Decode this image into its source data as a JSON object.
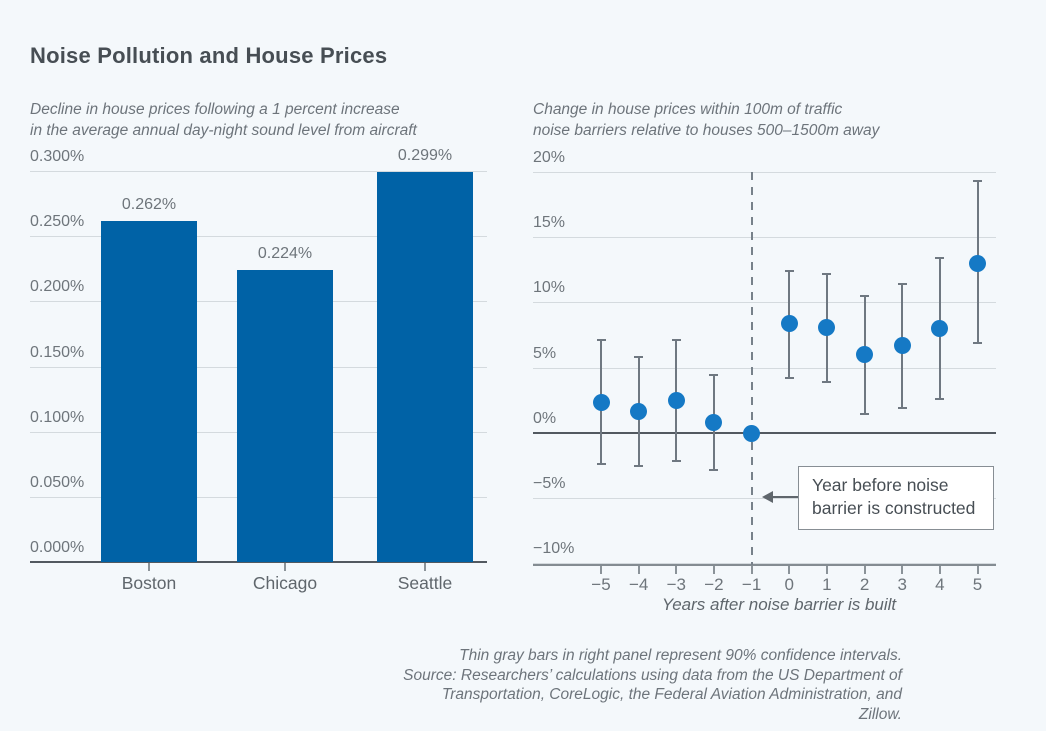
{
  "page": {
    "title": "Noise Pollution and House Prices",
    "caption_lines": [
      "Thin gray bars in right panel represent 90% confidence intervals.",
      "Source: Researchers’ calculations using data from the US Department of",
      "Transportation, CoreLogic, the Federal Aviation Administration, and Zillow."
    ]
  },
  "colors": {
    "bg": "#f4f8fb",
    "bar": "#0062a6",
    "dot": "#1579c5",
    "whisker": "#6f7881",
    "grid": "#d4dade",
    "axis_dark": "#525960",
    "axis_med": "#848c92",
    "tick": "#8b9399",
    "dash": "#77818a",
    "arrow": "#5f666c",
    "ann_border": "#878e94",
    "ann_bg": "#ffffff",
    "text_dark": "#474e54",
    "text_gray": "#6d747b",
    "text_axis": "#6e757b",
    "text_axis2": "#5f666c"
  },
  "chart_data": [
    {
      "type": "bar",
      "title_lines": [
        "Decline in house prices following a 1 percent increase",
        "in the average annual day-night sound level from aircraft"
      ],
      "categories": [
        "Boston",
        "Chicago",
        "Seattle"
      ],
      "values": [
        0.262,
        0.224,
        0.299
      ],
      "value_labels": [
        "0.262%",
        "0.224%",
        "0.299%"
      ],
      "ytick_labels": [
        "0.300%",
        "0.250%",
        "0.200%",
        "0.150%",
        "0.100%",
        "0.050%",
        "0.000%"
      ],
      "ylim": [
        0,
        0.3
      ],
      "grid": true,
      "legend": "none"
    },
    {
      "type": "scatter",
      "title_lines": [
        "Change in house prices within 100m of traffic",
        "noise barriers relative to houses 500–1500m away"
      ],
      "x": [
        -5,
        -4,
        -3,
        -2,
        -1,
        0,
        1,
        2,
        3,
        4,
        5
      ],
      "xtick_labels": [
        "−5",
        "−4",
        "−3",
        "−2",
        "−1",
        "0",
        "1",
        "2",
        "3",
        "4",
        "5"
      ],
      "y": [
        2.3,
        1.6,
        2.5,
        0.8,
        -0.1,
        8.4,
        8.1,
        6.0,
        6.7,
        8.0,
        13.0
      ],
      "ci90_low": [
        -2.4,
        -2.6,
        -2.2,
        -2.9,
        null,
        4.2,
        3.9,
        1.4,
        1.9,
        2.6,
        6.9
      ],
      "ci90_high": [
        7.1,
        5.8,
        7.1,
        4.4,
        null,
        12.4,
        12.2,
        10.5,
        11.4,
        13.4,
        19.3
      ],
      "ytick_labels": [
        "20%",
        "15%",
        "10%",
        "5%",
        "0%",
        "−5%",
        "−10%"
      ],
      "ytick_values": [
        20,
        15,
        10,
        5,
        0,
        -5,
        -10
      ],
      "ylim": [
        -10,
        20
      ],
      "xlabel": "Years after noise barrier is built",
      "dashed_line_x": -1,
      "annotation": {
        "text_lines": [
          "Year before noise",
          "barrier is constructed"
        ],
        "points_to_x": -1
      },
      "grid": true,
      "legend": "none"
    }
  ]
}
